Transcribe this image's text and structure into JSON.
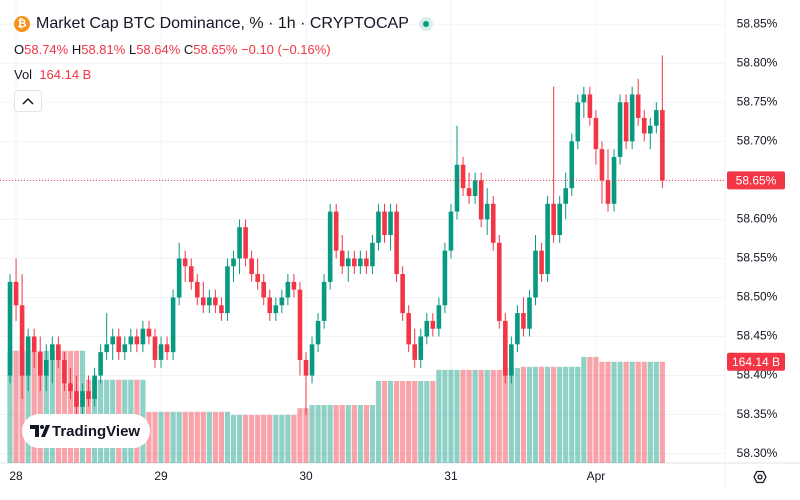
{
  "chart_data": {
    "type": "candlestick",
    "title": "Market Cap BTC Dominance, % · 1h · CRYPTOCAP",
    "header": {
      "open_label": "O",
      "open": "58.74%",
      "high_label": "H",
      "high": "58.81%",
      "low_label": "L",
      "low": "58.64%",
      "close_label": "C",
      "close": "58.65%",
      "change": "−0.10 (−0.16%)"
    },
    "volume_label": "Vol",
    "volume_value": "164.14 B",
    "up_color": "#089981",
    "down_color": "#f23645",
    "grid": true,
    "ylim": [
      58.288,
      58.881
    ],
    "yticks": [
      {
        "value": 58.3,
        "label": "58.30%"
      },
      {
        "value": 58.35,
        "label": "58.35%"
      },
      {
        "value": 58.4,
        "label": "58.40%"
      },
      {
        "value": 58.45,
        "label": "58.45%"
      },
      {
        "value": 58.5,
        "label": "58.50%"
      },
      {
        "value": 58.55,
        "label": "58.55%"
      },
      {
        "value": 58.6,
        "label": "58.60%"
      },
      {
        "value": 58.65,
        "label": "58.65%"
      },
      {
        "value": 58.7,
        "label": "58.70%"
      },
      {
        "value": 58.75,
        "label": "58.75%"
      },
      {
        "value": 58.8,
        "label": "58.80%"
      },
      {
        "value": 58.85,
        "label": "58.85%"
      }
    ],
    "xlim": [
      -1.66,
      118.37
    ],
    "xticks": [
      {
        "value": 1,
        "label": "28"
      },
      {
        "value": 25,
        "label": "29"
      },
      {
        "value": 49,
        "label": "30"
      },
      {
        "value": 73,
        "label": "31"
      },
      {
        "value": 97,
        "label": "Apr"
      }
    ],
    "vlim": [
      0,
      240
    ],
    "last_price": {
      "value": 58.65,
      "label": "58.65%"
    },
    "last_volume": {
      "value": 164.14,
      "label": "164.14 B"
    },
    "watermark": "TradingView",
    "ohlc": [
      [
        58.4,
        58.53,
        58.39,
        58.52
      ],
      [
        58.52,
        58.55,
        58.47,
        58.49
      ],
      [
        58.49,
        58.53,
        58.37,
        58.4
      ],
      [
        58.4,
        58.46,
        58.38,
        58.45
      ],
      [
        58.45,
        58.46,
        58.41,
        58.43
      ],
      [
        58.43,
        58.45,
        58.38,
        58.4
      ],
      [
        58.4,
        58.44,
        58.38,
        58.42
      ],
      [
        58.42,
        58.45,
        58.39,
        58.44
      ],
      [
        58.44,
        58.45,
        58.41,
        58.42
      ],
      [
        58.42,
        58.43,
        58.38,
        58.39
      ],
      [
        58.39,
        58.41,
        58.37,
        58.38
      ],
      [
        58.38,
        58.4,
        58.35,
        58.36
      ],
      [
        58.36,
        58.39,
        58.34,
        58.38
      ],
      [
        58.38,
        58.4,
        58.36,
        58.37
      ],
      [
        58.37,
        58.41,
        58.36,
        58.4
      ],
      [
        58.4,
        58.44,
        58.39,
        58.43
      ],
      [
        58.43,
        58.48,
        58.42,
        58.44
      ],
      [
        58.44,
        58.46,
        58.42,
        58.45
      ],
      [
        58.45,
        58.46,
        58.42,
        58.43
      ],
      [
        58.43,
        58.45,
        58.42,
        58.44
      ],
      [
        58.44,
        58.46,
        58.43,
        58.45
      ],
      [
        58.45,
        58.46,
        58.43,
        58.44
      ],
      [
        58.44,
        58.47,
        58.43,
        58.46
      ],
      [
        58.46,
        58.47,
        58.44,
        58.45
      ],
      [
        58.45,
        58.46,
        58.41,
        58.42
      ],
      [
        58.42,
        58.45,
        58.41,
        58.44
      ],
      [
        58.44,
        58.45,
        58.42,
        58.43
      ],
      [
        58.43,
        58.51,
        58.42,
        58.5
      ],
      [
        58.5,
        58.57,
        58.49,
        58.55
      ],
      [
        58.55,
        58.56,
        58.52,
        58.54
      ],
      [
        58.54,
        58.55,
        58.51,
        58.52
      ],
      [
        58.52,
        58.53,
        58.49,
        58.5
      ],
      [
        58.5,
        58.52,
        58.48,
        58.49
      ],
      [
        58.49,
        58.51,
        58.48,
        58.5
      ],
      [
        58.5,
        58.51,
        58.48,
        58.49
      ],
      [
        58.49,
        58.5,
        58.47,
        58.48
      ],
      [
        58.48,
        58.55,
        58.47,
        58.54
      ],
      [
        58.54,
        58.56,
        58.52,
        58.55
      ],
      [
        58.55,
        58.6,
        58.53,
        58.59
      ],
      [
        58.59,
        58.6,
        58.54,
        58.55
      ],
      [
        58.55,
        58.56,
        58.52,
        58.53
      ],
      [
        58.53,
        58.55,
        58.51,
        58.52
      ],
      [
        58.52,
        58.53,
        58.49,
        58.5
      ],
      [
        58.5,
        58.51,
        58.47,
        58.48
      ],
      [
        58.48,
        58.5,
        58.47,
        58.49
      ],
      [
        58.49,
        58.51,
        58.48,
        58.5
      ],
      [
        58.5,
        58.53,
        58.49,
        58.52
      ],
      [
        58.52,
        58.53,
        58.5,
        58.51
      ],
      [
        58.51,
        58.52,
        58.4,
        58.42
      ],
      [
        58.42,
        58.43,
        58.35,
        58.4
      ],
      [
        58.4,
        58.45,
        58.39,
        58.44
      ],
      [
        58.44,
        58.48,
        58.43,
        58.47
      ],
      [
        58.47,
        58.53,
        58.46,
        58.52
      ],
      [
        58.52,
        58.62,
        58.51,
        58.61
      ],
      [
        58.61,
        58.62,
        58.55,
        58.56
      ],
      [
        58.56,
        58.58,
        58.53,
        58.54
      ],
      [
        58.54,
        58.56,
        58.52,
        58.55
      ],
      [
        58.55,
        58.56,
        58.53,
        58.54
      ],
      [
        58.54,
        58.56,
        58.53,
        58.55
      ],
      [
        58.55,
        58.56,
        58.53,
        58.54
      ],
      [
        58.54,
        58.58,
        58.53,
        58.57
      ],
      [
        58.57,
        58.62,
        58.56,
        58.61
      ],
      [
        58.61,
        58.62,
        58.57,
        58.58
      ],
      [
        58.58,
        58.62,
        58.56,
        58.61
      ],
      [
        58.61,
        58.62,
        58.52,
        58.53
      ],
      [
        58.53,
        58.54,
        58.47,
        58.48
      ],
      [
        58.48,
        58.49,
        58.43,
        58.44
      ],
      [
        58.44,
        58.46,
        58.41,
        58.42
      ],
      [
        58.42,
        58.46,
        58.41,
        58.45
      ],
      [
        58.45,
        58.48,
        58.44,
        58.47
      ],
      [
        58.47,
        58.48,
        58.45,
        58.46
      ],
      [
        58.46,
        58.5,
        58.45,
        58.49
      ],
      [
        58.49,
        58.57,
        58.48,
        58.56
      ],
      [
        58.56,
        58.62,
        58.55,
        58.61
      ],
      [
        58.61,
        58.72,
        58.6,
        58.67
      ],
      [
        58.67,
        58.68,
        58.63,
        58.64
      ],
      [
        58.64,
        58.66,
        58.62,
        58.63
      ],
      [
        58.63,
        58.66,
        58.62,
        58.65
      ],
      [
        58.65,
        58.66,
        58.59,
        58.6
      ],
      [
        58.6,
        58.64,
        58.58,
        58.62
      ],
      [
        58.62,
        58.63,
        58.56,
        58.57
      ],
      [
        58.57,
        58.58,
        58.46,
        58.47
      ],
      [
        58.47,
        58.48,
        58.39,
        58.4
      ],
      [
        58.4,
        58.45,
        58.39,
        58.44
      ],
      [
        58.44,
        58.49,
        58.43,
        58.48
      ],
      [
        58.48,
        58.5,
        58.45,
        58.46
      ],
      [
        58.46,
        58.51,
        58.45,
        58.5
      ],
      [
        58.5,
        58.58,
        58.49,
        58.56
      ],
      [
        58.56,
        58.57,
        58.52,
        58.53
      ],
      [
        58.53,
        58.63,
        58.52,
        58.62
      ],
      [
        58.62,
        58.77,
        58.57,
        58.58
      ],
      [
        58.58,
        58.63,
        58.57,
        58.62
      ],
      [
        58.62,
        58.66,
        58.6,
        58.64
      ],
      [
        58.64,
        58.71,
        58.63,
        58.7
      ],
      [
        58.7,
        58.76,
        58.69,
        58.75
      ],
      [
        58.75,
        58.77,
        58.73,
        58.76
      ],
      [
        58.76,
        58.77,
        58.72,
        58.73
      ],
      [
        58.73,
        58.74,
        58.67,
        58.69
      ],
      [
        58.69,
        58.7,
        58.62,
        58.65
      ],
      [
        58.65,
        58.69,
        58.61,
        58.62
      ],
      [
        58.62,
        58.69,
        58.61,
        58.68
      ],
      [
        58.68,
        58.76,
        58.67,
        58.75
      ],
      [
        58.75,
        58.76,
        58.69,
        58.7
      ],
      [
        58.7,
        58.77,
        58.69,
        58.76
      ],
      [
        58.76,
        58.78,
        58.72,
        58.73
      ],
      [
        58.73,
        58.74,
        58.7,
        58.71
      ],
      [
        58.71,
        58.73,
        58.69,
        58.72
      ],
      [
        58.72,
        58.75,
        58.71,
        58.74
      ],
      [
        58.74,
        58.81,
        58.64,
        58.65
      ]
    ],
    "volume": [
      182,
      182,
      182,
      182,
      182,
      182,
      182,
      182,
      182,
      182,
      182,
      182,
      182,
      135,
      135,
      135,
      135,
      135,
      135,
      135,
      135,
      135,
      135,
      83,
      83,
      83,
      83,
      83,
      83,
      83,
      83,
      83,
      83,
      83,
      83,
      83,
      83,
      78,
      78,
      78,
      78,
      78,
      78,
      78,
      78,
      78,
      78,
      78,
      89,
      89,
      94,
      94,
      94,
      94,
      94,
      94,
      94,
      94,
      94,
      94,
      94,
      133,
      133,
      133,
      133,
      133,
      133,
      133,
      133,
      133,
      133,
      151,
      151,
      151,
      151,
      151,
      151,
      151,
      151,
      151,
      151,
      151,
      154,
      154,
      154,
      156,
      156,
      156,
      156,
      156,
      156,
      156,
      156,
      156,
      156,
      172,
      172,
      172,
      164.14,
      164.14,
      164.14,
      164.14,
      164.14,
      164.14,
      164.14,
      164.14,
      164.14,
      164.14,
      164.14
    ]
  }
}
